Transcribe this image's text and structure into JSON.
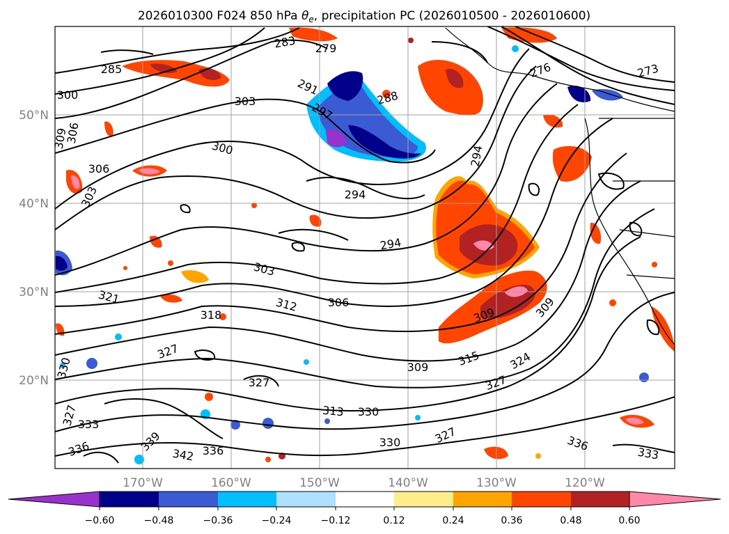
{
  "title_main": "2026010300 F024 850 hPa ",
  "title_theta": "θ",
  "title_sub": "e",
  "title_rest": ", precipitation PC (2026010500 - 2026010600)",
  "lat_labels": [
    "50°N",
    "40°N",
    "30°N",
    "20°N"
  ],
  "lon_labels": [
    "170°W",
    "160°W",
    "150°W",
    "140°W",
    "130°W",
    "120°W"
  ],
  "colorbar": {
    "colors": [
      "#9932cc",
      "#00008b",
      "#3a5bd3",
      "#00bfff",
      "#b0e0ff",
      "#ffffff",
      "#ffec8b",
      "#ffa500",
      "#ff4500",
      "#b22222",
      "#ff88aa"
    ],
    "tick_labels": [
      "−0.60",
      "−0.48",
      "−0.36",
      "−0.24",
      "−0.12",
      "0.12",
      "0.24",
      "0.36",
      "0.48",
      "0.60"
    ]
  },
  "contour_labels": [
    "285",
    "300",
    "309",
    "306",
    "306",
    "303",
    "303",
    "300",
    "291",
    "297",
    "288",
    "294",
    "294",
    "279",
    "283",
    "273",
    "276",
    "294",
    "303",
    "321",
    "318",
    "312",
    "306",
    "309",
    "309",
    "315",
    "324",
    "327",
    "327",
    "330",
    "330",
    "330",
    "333",
    "336",
    "339",
    "342",
    "336",
    "327",
    "327",
    "336",
    "333",
    "327",
    "313",
    "309"
  ]
}
